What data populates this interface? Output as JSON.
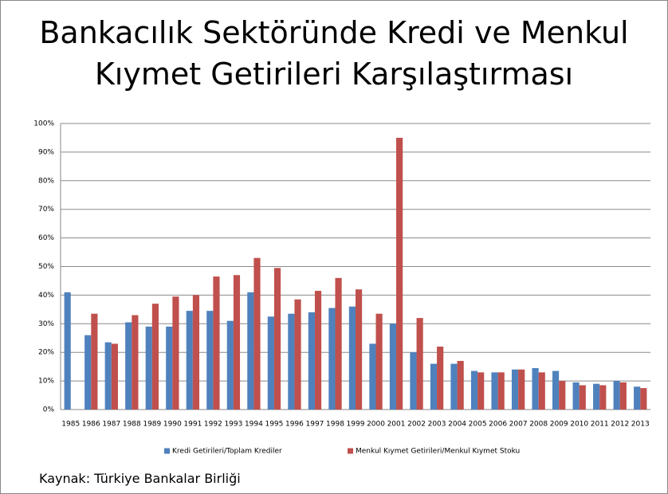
{
  "chart_data": {
    "type": "bar",
    "title": "Bankacılık Sektöründe Kredi ve Menkul Kıymet Getirileri Karşılaştırması",
    "source": "Kaynak: Türkiye Bankalar Birliği",
    "categories": [
      "1985",
      "1986",
      "1987",
      "1988",
      "1989",
      "1990",
      "1991",
      "1992",
      "1993",
      "1994",
      "1995",
      "1996",
      "1997",
      "1998",
      "1999",
      "2000",
      "2001",
      "2002",
      "2003",
      "2004",
      "2005",
      "2006",
      "2007",
      "2008",
      "2009",
      "2010",
      "2011",
      "2012",
      "2013"
    ],
    "series": [
      {
        "name": "Kredi Getirileri/Toplam Krediler",
        "color": "#4f81bd",
        "values": [
          41,
          26,
          23.5,
          30.5,
          29,
          29,
          34.5,
          34.5,
          31,
          41,
          32.5,
          33.5,
          34,
          35.5,
          36,
          23,
          30,
          20,
          16,
          16,
          13.5,
          13,
          14,
          14.5,
          13.5,
          9.5,
          9,
          10,
          8
        ]
      },
      {
        "name": "Menkul Kıymet Getirileri/Menkul Kıymet Stoku",
        "color": "#c0504d",
        "values": [
          null,
          33.5,
          23,
          33,
          37,
          39.5,
          40,
          46.5,
          47,
          53,
          49.5,
          38.5,
          41.5,
          46,
          42,
          33.5,
          95,
          32,
          22,
          17,
          13,
          13,
          14,
          13,
          10,
          8.5,
          8.5,
          9.5,
          7.5
        ]
      }
    ],
    "ylim": [
      0,
      100
    ],
    "yticks": [
      {
        "value": 0,
        "label": "0%"
      },
      {
        "value": 10,
        "label": "10%"
      },
      {
        "value": 20,
        "label": "20%"
      },
      {
        "value": 30,
        "label": "30%"
      },
      {
        "value": 40,
        "label": "40%"
      },
      {
        "value": 50,
        "label": "50%"
      },
      {
        "value": 60,
        "label": "60%"
      },
      {
        "value": 70,
        "label": "70%"
      },
      {
        "value": 80,
        "label": "80%"
      },
      {
        "value": 90,
        "label": "90%"
      },
      {
        "value": 100,
        "label": "100%"
      }
    ],
    "grid": true,
    "legend": "bottom"
  }
}
